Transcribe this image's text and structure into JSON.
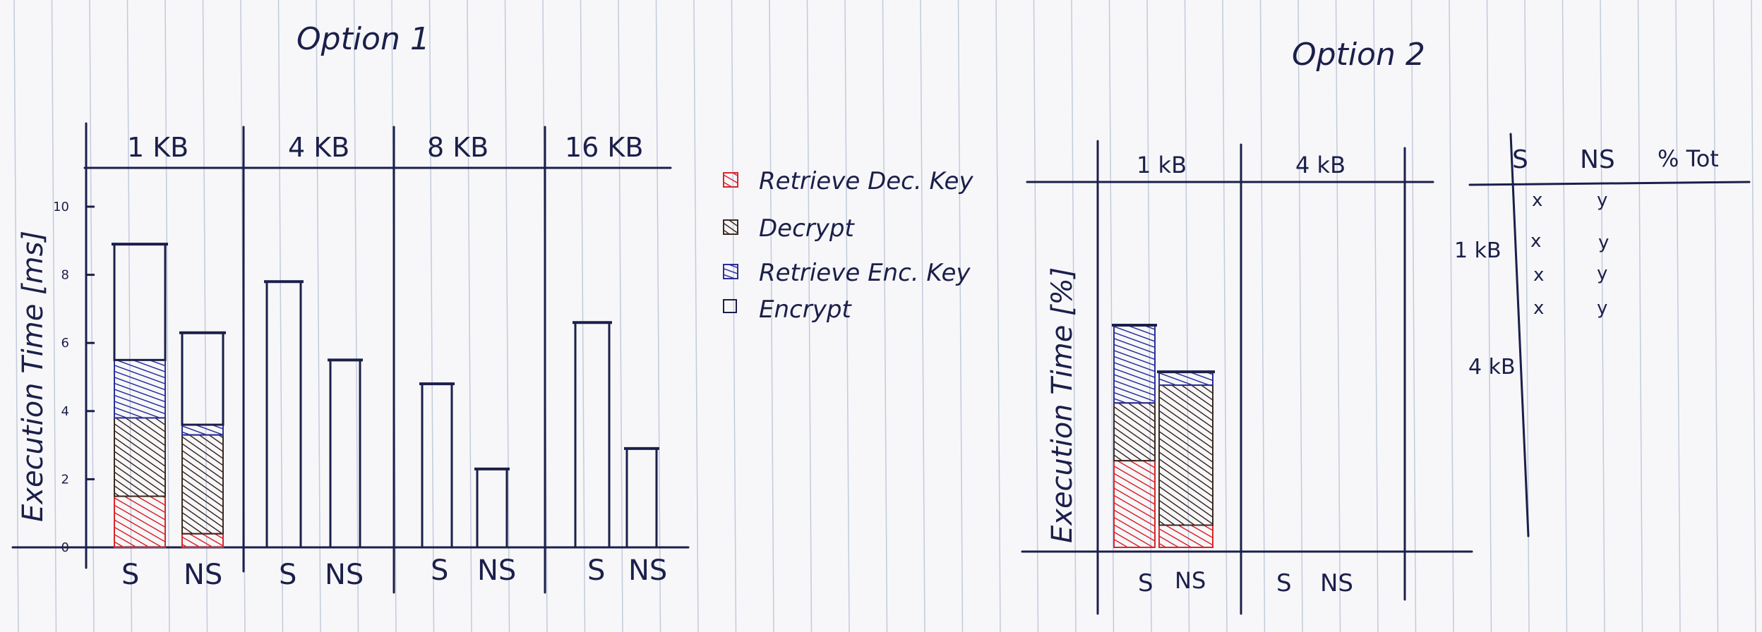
{
  "colors": {
    "paper": "#f7f7f9",
    "rule": "#b9c2d6",
    "ink": "#1b1f4a",
    "red": "#d8262c",
    "brown": "#3b2a22",
    "blue": "#2a2f9a"
  },
  "option1": {
    "title": "Option 1",
    "y_label": "Execution Time [ms]",
    "y_ticks": [
      "0",
      "2",
      "4",
      "6",
      "8",
      "10"
    ],
    "groups": [
      "1 KB",
      "4 KB",
      "8 KB",
      "16 KB"
    ],
    "bar_labels": [
      "S",
      "NS",
      "S",
      "NS",
      "S",
      "NS",
      "S",
      "NS"
    ]
  },
  "legend": {
    "items": [
      {
        "label": "Retrieve Dec. Key",
        "color": "#d8262c"
      },
      {
        "label": "Decrypt",
        "color": "#3b2a22"
      },
      {
        "label": "Retrieve Enc. Key",
        "color": "#2a2f9a"
      },
      {
        "label": "Encrypt",
        "color": "none"
      }
    ]
  },
  "option2": {
    "title": "Option 2",
    "y_label": "Execution Time [%]",
    "groups": [
      "1 kB",
      "4 kB"
    ],
    "bar_labels": [
      "S",
      "NS",
      "S",
      "NS"
    ]
  },
  "side_table": {
    "headers": [
      "S",
      "NS",
      "% Tot"
    ],
    "row_labels": [
      "1 kB",
      "4 kB"
    ],
    "cells": [
      [
        "x",
        "y"
      ],
      [
        "x",
        "y"
      ],
      [
        "x",
        "y"
      ],
      [
        "x",
        "y"
      ]
    ]
  },
  "chart_data": [
    {
      "type": "bar",
      "title": "Option 1",
      "ylabel": "Execution Time [ms]",
      "ylim": [
        0,
        10
      ],
      "yticks": [
        0,
        2,
        4,
        6,
        8,
        10
      ],
      "categories": [
        "1 KB S",
        "1 KB NS",
        "4 KB S",
        "4 KB NS",
        "8 KB S",
        "8 KB NS",
        "16 KB S",
        "16 KB NS"
      ],
      "series": [
        {
          "name": "Retrieve Dec. Key",
          "values": [
            1.5,
            0.4,
            0,
            0,
            0,
            0,
            0,
            0
          ]
        },
        {
          "name": "Decrypt",
          "values": [
            2.3,
            2.9,
            0,
            0,
            0,
            0,
            0,
            0
          ]
        },
        {
          "name": "Retrieve Enc. Key",
          "values": [
            1.7,
            0.3,
            0,
            0,
            0,
            0,
            0,
            0
          ]
        },
        {
          "name": "Encrypt",
          "values": [
            3.4,
            2.7,
            7.8,
            5.5,
            4.8,
            2.3,
            6.6,
            2.9
          ]
        }
      ],
      "legend_position": "right"
    },
    {
      "type": "bar",
      "title": "Option 2",
      "ylabel": "Execution Time [%]",
      "categories": [
        "1 kB S",
        "1 kB NS",
        "4 kB S",
        "4 kB NS"
      ],
      "series": [
        {
          "name": "Retrieve Dec. Key",
          "values": [
            39,
            10,
            0,
            0
          ]
        },
        {
          "name": "Decrypt",
          "values": [
            26,
            63,
            0,
            0
          ]
        },
        {
          "name": "Retrieve Enc. Key",
          "values": [
            35,
            6,
            0,
            0
          ]
        }
      ]
    }
  ]
}
